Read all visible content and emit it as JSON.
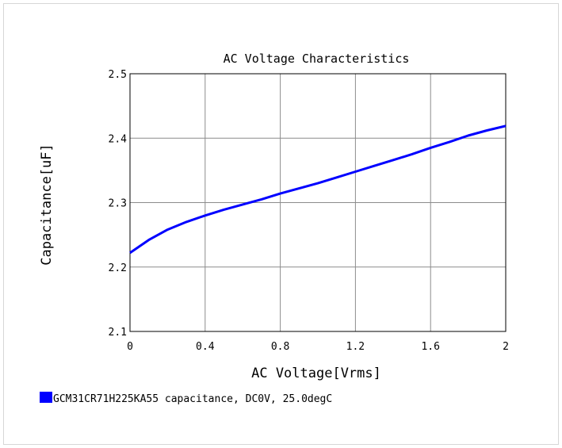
{
  "chart_data": {
    "type": "line",
    "title": "AC Voltage Characteristics",
    "xlabel": "AC Voltage[Vrms]",
    "ylabel": "Capacitance[uF]",
    "xlim": [
      0,
      2
    ],
    "ylim": [
      2.1,
      2.5
    ],
    "xticks": [
      0,
      0.4,
      0.8,
      1.2,
      1.6,
      2
    ],
    "xtick_labels": [
      "0",
      "0.4",
      "0.8",
      "1.2",
      "1.6",
      "2"
    ],
    "yticks": [
      2.1,
      2.2,
      2.3,
      2.4,
      2.5
    ],
    "ytick_labels": [
      "2.1",
      "2.2",
      "2.3",
      "2.4",
      "2.5"
    ],
    "grid": true,
    "legend_position": "bottom-left",
    "series": [
      {
        "name": "GCM31CR71H225KA55 capacitance, DC0V, 25.0degC",
        "color": "#0000ff",
        "x": [
          0,
          0.1,
          0.2,
          0.3,
          0.4,
          0.5,
          0.6,
          0.7,
          0.8,
          0.9,
          1.0,
          1.1,
          1.2,
          1.3,
          1.4,
          1.5,
          1.6,
          1.7,
          1.8,
          1.9,
          2.0
        ],
        "y": [
          2.222,
          2.242,
          2.258,
          2.27,
          2.28,
          2.289,
          2.297,
          2.305,
          2.314,
          2.322,
          2.33,
          2.339,
          2.348,
          2.357,
          2.366,
          2.375,
          2.385,
          2.394,
          2.404,
          2.412,
          2.419
        ]
      }
    ]
  }
}
